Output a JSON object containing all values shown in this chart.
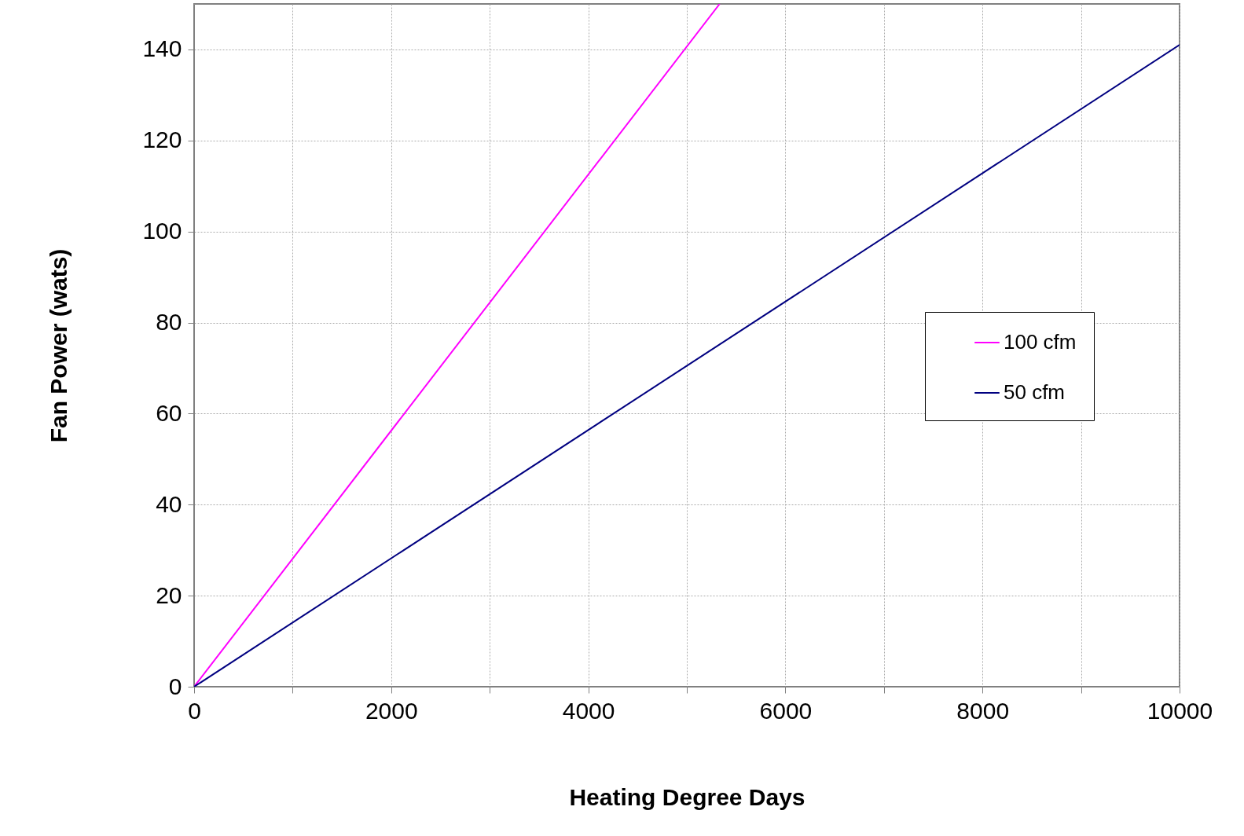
{
  "chart_data": {
    "type": "line",
    "xlabel": "Heating Degree Days",
    "ylabel": "Fan Power (wats)",
    "xlim": [
      0,
      10000
    ],
    "ylim": [
      0,
      150
    ],
    "xticks": [
      0,
      {
        "value": 1000,
        "label": null
      },
      2000,
      {
        "value": 3000,
        "label": null
      },
      4000,
      {
        "value": 5000,
        "label": null
      },
      6000,
      {
        "value": 7000,
        "label": null
      },
      8000,
      {
        "value": 9000,
        "label": null
      },
      10000
    ],
    "yticks": [
      0,
      20,
      40,
      60,
      80,
      100,
      120,
      140
    ],
    "grid": true,
    "legend": "right",
    "marker": "none",
    "line_style": "solid",
    "series": [
      {
        "name": "100 cfm",
        "color": "#ff00ff",
        "x": [
          0,
          5333
        ],
        "values": [
          0,
          150
        ]
      },
      {
        "name": "50 cfm",
        "color": "#000080",
        "x": [
          0,
          10000
        ],
        "values": [
          0,
          141
        ]
      }
    ]
  }
}
